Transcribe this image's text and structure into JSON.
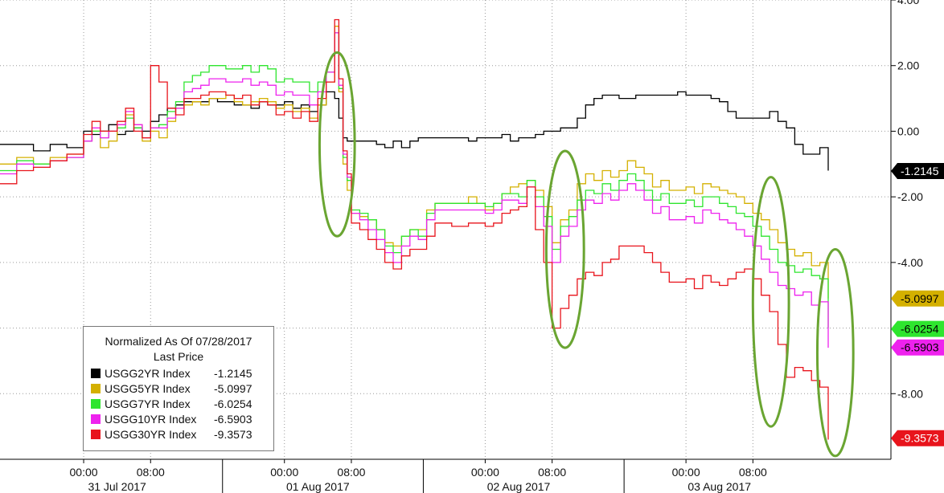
{
  "chart_data": {
    "type": "line",
    "title": "",
    "xlabel": "",
    "ylabel": "",
    "ylim": [
      -10,
      4
    ],
    "yticks": [
      4.0,
      2.0,
      0.0,
      -2.0,
      -4.0,
      -8.0
    ],
    "ytick_labels": [
      "4.00",
      "2.00",
      "0.00",
      "-2.00",
      "-4.00",
      "-8.00"
    ],
    "grid": true,
    "x_axis": {
      "unit": "hours since 00:00 31 Jul 2017",
      "xlim": [
        -10,
        96.5
      ],
      "time_ticks": [
        {
          "x": 0,
          "label": "00:00"
        },
        {
          "x": 8,
          "label": "08:00"
        },
        {
          "x": 24,
          "label": "00:00"
        },
        {
          "x": 32,
          "label": "08:00"
        },
        {
          "x": 48,
          "label": "00:00"
        },
        {
          "x": 56,
          "label": "08:00"
        },
        {
          "x": 72,
          "label": "00:00"
        },
        {
          "x": 80,
          "label": "08:00"
        }
      ],
      "date_labels": [
        {
          "x": 4,
          "label": "31 Jul 2017"
        },
        {
          "x": 28,
          "label": "01 Aug 2017"
        },
        {
          "x": 52,
          "label": "02 Aug 2017"
        },
        {
          "x": 76,
          "label": "03 Aug 2017"
        }
      ],
      "day_boundaries": [
        16.6,
        40.6,
        64.6
      ]
    },
    "legend": {
      "placement": "bottom-left",
      "header_line1": "Normalized As Of 07/28/2017",
      "header_line2": "Last Price"
    },
    "series": [
      {
        "name": "USGG2YR Index",
        "last": "-1.2145",
        "color": "#000000",
        "x": [
          -10,
          -8,
          -6,
          -4,
          -2,
          0,
          1,
          2,
          3,
          4,
          5,
          6,
          7,
          8,
          9,
          10,
          11,
          12,
          13,
          14,
          15,
          16,
          17,
          18,
          19,
          20,
          21,
          22,
          23,
          24,
          25,
          26,
          27,
          28,
          29,
          30,
          30.5,
          31,
          31.5,
          32,
          33,
          34,
          35,
          36,
          37,
          38,
          39,
          40,
          41,
          42,
          43,
          44,
          45,
          46,
          47,
          48,
          49,
          50,
          51,
          52,
          53,
          54,
          55,
          56,
          57,
          58,
          59,
          60,
          61,
          62,
          63,
          64,
          65,
          66,
          67,
          68,
          69,
          70,
          71,
          72,
          73,
          74,
          75,
          76,
          77,
          78,
          79,
          80,
          81,
          82,
          83,
          84,
          85,
          86,
          87,
          88,
          89
        ],
        "y": [
          -0.4,
          -0.4,
          -0.6,
          -0.4,
          -0.5,
          0.0,
          -0.1,
          0.0,
          0.2,
          -0.1,
          0.0,
          0.1,
          0.0,
          0.3,
          0.5,
          0.7,
          0.8,
          0.9,
          0.9,
          0.9,
          1.0,
          0.9,
          0.9,
          0.8,
          0.8,
          0.7,
          0.9,
          0.8,
          0.8,
          0.9,
          0.7,
          0.8,
          0.6,
          0.8,
          1.2,
          1.0,
          0.4,
          -0.2,
          -0.3,
          -0.3,
          -0.3,
          -0.3,
          -0.4,
          -0.5,
          -0.3,
          -0.5,
          -0.3,
          -0.2,
          -0.2,
          -0.2,
          -0.2,
          -0.2,
          -0.2,
          -0.3,
          -0.2,
          -0.2,
          -0.2,
          -0.1,
          -0.3,
          -0.2,
          -0.2,
          -0.1,
          0.0,
          0.0,
          0.1,
          0.1,
          0.4,
          0.8,
          1.0,
          1.1,
          1.1,
          1.0,
          1.0,
          1.1,
          1.1,
          1.1,
          1.1,
          1.1,
          1.2,
          1.1,
          1.1,
          1.1,
          1.0,
          0.9,
          0.6,
          0.4,
          0.4,
          0.4,
          0.4,
          0.6,
          0.3,
          0.1,
          -0.4,
          -0.7,
          -0.7,
          -0.5,
          -1.2
        ]
      },
      {
        "name": "USGG5YR Index",
        "last": "-5.0997",
        "color": "#d4b000",
        "x": [
          -10,
          -8,
          -6,
          -4,
          -2,
          0,
          1,
          2,
          3,
          4,
          5,
          6,
          7,
          8,
          9,
          10,
          11,
          12,
          13,
          14,
          15,
          16,
          17,
          18,
          19,
          20,
          21,
          22,
          23,
          24,
          25,
          26,
          27,
          28,
          29,
          30,
          30.5,
          31,
          31.5,
          32,
          33,
          34,
          35,
          36,
          37,
          38,
          39,
          40,
          41,
          42,
          43,
          44,
          45,
          46,
          47,
          48,
          49,
          50,
          51,
          52,
          53,
          54,
          55,
          56,
          57,
          58,
          59,
          60,
          61,
          62,
          63,
          64,
          65,
          66,
          67,
          68,
          69,
          70,
          71,
          72,
          73,
          74,
          75,
          76,
          77,
          78,
          79,
          80,
          81,
          82,
          83,
          84,
          85,
          86,
          87,
          88,
          89
        ],
        "y": [
          -1.0,
          -0.8,
          -1.0,
          -0.8,
          -0.7,
          -0.3,
          0.0,
          -0.5,
          -0.3,
          0.2,
          0.5,
          0.2,
          -0.3,
          0.0,
          -0.2,
          0.3,
          0.7,
          0.8,
          0.9,
          0.8,
          1.0,
          1.0,
          1.1,
          0.9,
          0.8,
          0.9,
          1.0,
          0.9,
          0.7,
          0.8,
          0.6,
          0.7,
          0.4,
          0.8,
          1.5,
          3.2,
          1.2,
          -1.0,
          -1.8,
          -2.5,
          -2.6,
          -2.7,
          -3.0,
          -3.4,
          -3.5,
          -3.2,
          -3.0,
          -3.0,
          -2.4,
          -2.2,
          -2.2,
          -2.2,
          -2.2,
          -2.0,
          -2.2,
          -2.4,
          -2.2,
          -1.9,
          -1.7,
          -1.6,
          -1.5,
          -1.8,
          -2.3,
          -3.4,
          -2.7,
          -2.4,
          -1.6,
          -1.3,
          -1.5,
          -1.2,
          -1.4,
          -1.2,
          -0.9,
          -1.1,
          -1.3,
          -1.7,
          -1.5,
          -1.8,
          -1.8,
          -1.7,
          -1.9,
          -1.6,
          -1.7,
          -1.8,
          -1.9,
          -2.0,
          -2.2,
          -2.5,
          -2.7,
          -3.0,
          -3.4,
          -3.6,
          -3.8,
          -3.7,
          -4.1,
          -4.0,
          -5.1
        ]
      },
      {
        "name": "USGG7YR Index",
        "last": "-6.0254",
        "color": "#2ee52e",
        "x": [
          -10,
          -8,
          -6,
          -4,
          -2,
          0,
          1,
          2,
          3,
          4,
          5,
          6,
          7,
          8,
          9,
          10,
          11,
          12,
          13,
          14,
          15,
          16,
          17,
          18,
          19,
          20,
          21,
          22,
          23,
          24,
          25,
          26,
          27,
          28,
          29,
          30,
          30.5,
          31,
          31.5,
          32,
          33,
          34,
          35,
          36,
          37,
          38,
          39,
          40,
          41,
          42,
          43,
          44,
          45,
          46,
          47,
          48,
          49,
          50,
          51,
          52,
          53,
          54,
          55,
          56,
          57,
          58,
          59,
          60,
          61,
          62,
          63,
          64,
          65,
          66,
          67,
          68,
          69,
          70,
          71,
          72,
          73,
          74,
          75,
          76,
          77,
          78,
          79,
          80,
          81,
          82,
          83,
          84,
          85,
          86,
          87,
          88,
          89
        ],
        "y": [
          -1.2,
          -0.9,
          -1.0,
          -0.9,
          -0.8,
          -0.3,
          0.0,
          -0.2,
          0.0,
          0.1,
          0.4,
          0.1,
          -0.2,
          0.1,
          0.2,
          0.6,
          0.9,
          1.5,
          1.7,
          1.8,
          2.0,
          2.0,
          1.9,
          1.9,
          2.0,
          1.8,
          2.0,
          1.9,
          1.5,
          1.6,
          1.5,
          1.5,
          1.2,
          1.5,
          1.8,
          3.0,
          1.3,
          -0.8,
          -1.5,
          -2.4,
          -2.5,
          -2.7,
          -3.0,
          -3.5,
          -3.7,
          -3.2,
          -3.0,
          -3.2,
          -2.5,
          -2.2,
          -2.2,
          -2.2,
          -2.2,
          -2.2,
          -2.2,
          -2.3,
          -2.2,
          -1.9,
          -1.9,
          -2.0,
          -1.5,
          -2.0,
          -2.6,
          -3.6,
          -2.9,
          -2.6,
          -2.1,
          -1.8,
          -1.9,
          -1.6,
          -1.8,
          -1.5,
          -1.3,
          -1.5,
          -1.8,
          -2.1,
          -1.9,
          -2.2,
          -2.2,
          -2.1,
          -2.3,
          -2.0,
          -2.0,
          -2.2,
          -2.3,
          -2.5,
          -2.6,
          -2.9,
          -3.2,
          -3.6,
          -4.0,
          -4.1,
          -4.3,
          -4.2,
          -4.4,
          -4.5,
          -6.0
        ]
      },
      {
        "name": "USGG10YR Index",
        "last": "-6.5903",
        "color": "#ee22ee",
        "x": [
          -10,
          -8,
          -6,
          -4,
          -2,
          0,
          1,
          2,
          3,
          4,
          5,
          6,
          7,
          8,
          9,
          10,
          11,
          12,
          13,
          14,
          15,
          16,
          17,
          18,
          19,
          20,
          21,
          22,
          23,
          24,
          25,
          26,
          27,
          28,
          29,
          30,
          30.5,
          31,
          31.5,
          32,
          33,
          34,
          35,
          36,
          37,
          38,
          39,
          40,
          41,
          42,
          43,
          44,
          45,
          46,
          47,
          48,
          49,
          50,
          51,
          52,
          53,
          54,
          55,
          56,
          57,
          58,
          59,
          60,
          61,
          62,
          63,
          64,
          65,
          66,
          67,
          68,
          69,
          70,
          71,
          72,
          73,
          74,
          75,
          76,
          77,
          78,
          79,
          80,
          81,
          82,
          83,
          84,
          85,
          86,
          87,
          88,
          89
        ],
        "y": [
          -1.3,
          -1.0,
          -1.1,
          -0.9,
          -0.8,
          -0.3,
          0.1,
          -0.2,
          0.0,
          0.2,
          0.6,
          0.2,
          -0.2,
          0.1,
          0.1,
          0.4,
          0.7,
          1.2,
          1.3,
          1.4,
          1.6,
          1.6,
          1.5,
          1.5,
          1.6,
          1.4,
          1.5,
          1.4,
          1.1,
          1.2,
          1.1,
          1.1,
          0.8,
          1.2,
          1.8,
          3.0,
          1.4,
          -0.7,
          -1.4,
          -2.5,
          -2.7,
          -3.0,
          -3.3,
          -3.7,
          -4.0,
          -3.5,
          -3.2,
          -3.3,
          -2.7,
          -2.4,
          -2.4,
          -2.4,
          -2.4,
          -2.4,
          -2.4,
          -2.5,
          -2.4,
          -2.1,
          -2.1,
          -2.2,
          -1.7,
          -2.3,
          -2.9,
          -4.0,
          -3.2,
          -2.9,
          -2.4,
          -2.1,
          -2.2,
          -1.9,
          -2.1,
          -1.8,
          -1.6,
          -1.8,
          -2.1,
          -2.5,
          -2.3,
          -2.7,
          -2.7,
          -2.6,
          -2.8,
          -2.4,
          -2.5,
          -2.7,
          -2.8,
          -3.0,
          -3.2,
          -3.5,
          -3.9,
          -4.3,
          -4.7,
          -4.8,
          -5.0,
          -4.9,
          -5.3,
          -5.2,
          -6.6
        ]
      },
      {
        "name": "USGG30YR Index",
        "last": "-9.3573",
        "color": "#e8141c",
        "x": [
          -10,
          -8,
          -6,
          -4,
          -2,
          0,
          1,
          2,
          3,
          4,
          5,
          6,
          7,
          8,
          9,
          10,
          11,
          12,
          13,
          14,
          15,
          16,
          17,
          18,
          19,
          20,
          21,
          22,
          23,
          24,
          25,
          26,
          27,
          28,
          29,
          30,
          30.5,
          31,
          31.5,
          32,
          33,
          34,
          35,
          36,
          37,
          38,
          39,
          40,
          41,
          42,
          43,
          44,
          45,
          46,
          47,
          48,
          49,
          50,
          51,
          52,
          53,
          54,
          55,
          56,
          57,
          58,
          59,
          60,
          61,
          62,
          63,
          64,
          65,
          66,
          67,
          68,
          69,
          70,
          71,
          72,
          73,
          74,
          75,
          76,
          77,
          78,
          79,
          80,
          81,
          82,
          83,
          84,
          85,
          86,
          87,
          88,
          89
        ],
        "y": [
          -1.6,
          -1.2,
          -1.1,
          -0.9,
          -0.7,
          -0.1,
          0.3,
          0.0,
          0.0,
          0.3,
          0.7,
          0.0,
          -0.2,
          2.0,
          1.5,
          0.7,
          0.5,
          1.0,
          1.0,
          1.1,
          1.2,
          1.2,
          1.1,
          1.0,
          1.1,
          0.8,
          0.9,
          0.8,
          0.5,
          0.6,
          0.4,
          0.6,
          0.3,
          1.0,
          1.5,
          3.4,
          1.6,
          -0.6,
          -1.3,
          -2.8,
          -3.0,
          -3.3,
          -3.6,
          -4.0,
          -4.2,
          -3.8,
          -3.6,
          -3.6,
          -3.2,
          -2.8,
          -2.8,
          -2.9,
          -2.9,
          -2.8,
          -2.8,
          -2.9,
          -2.8,
          -2.5,
          -2.4,
          -2.3,
          -1.7,
          -3.0,
          -4.0,
          -6.0,
          -5.4,
          -5.0,
          -4.5,
          -4.3,
          -4.4,
          -4.0,
          -3.9,
          -3.5,
          -3.5,
          -3.5,
          -3.7,
          -4.0,
          -4.3,
          -4.6,
          -4.6,
          -4.5,
          -4.8,
          -4.4,
          -4.6,
          -4.7,
          -4.5,
          -4.3,
          -4.2,
          -4.5,
          -5.0,
          -5.5,
          -6.5,
          -7.5,
          -7.2,
          -7.3,
          -7.6,
          -7.8,
          -9.4
        ]
      }
    ]
  },
  "annotations": [
    {
      "x1": 28.2,
      "x2": 32.4,
      "ymax": 2.4,
      "ymin": -3.2
    },
    {
      "x1": 55.3,
      "x2": 59.8,
      "ymax": -0.6,
      "ymin": -6.6
    },
    {
      "x1": 80.0,
      "x2": 84.3,
      "ymax": -1.4,
      "ymin": -9.0
    },
    {
      "x1": 87.7,
      "x2": 92.0,
      "ymax": -3.6,
      "ymin": -9.9
    }
  ]
}
